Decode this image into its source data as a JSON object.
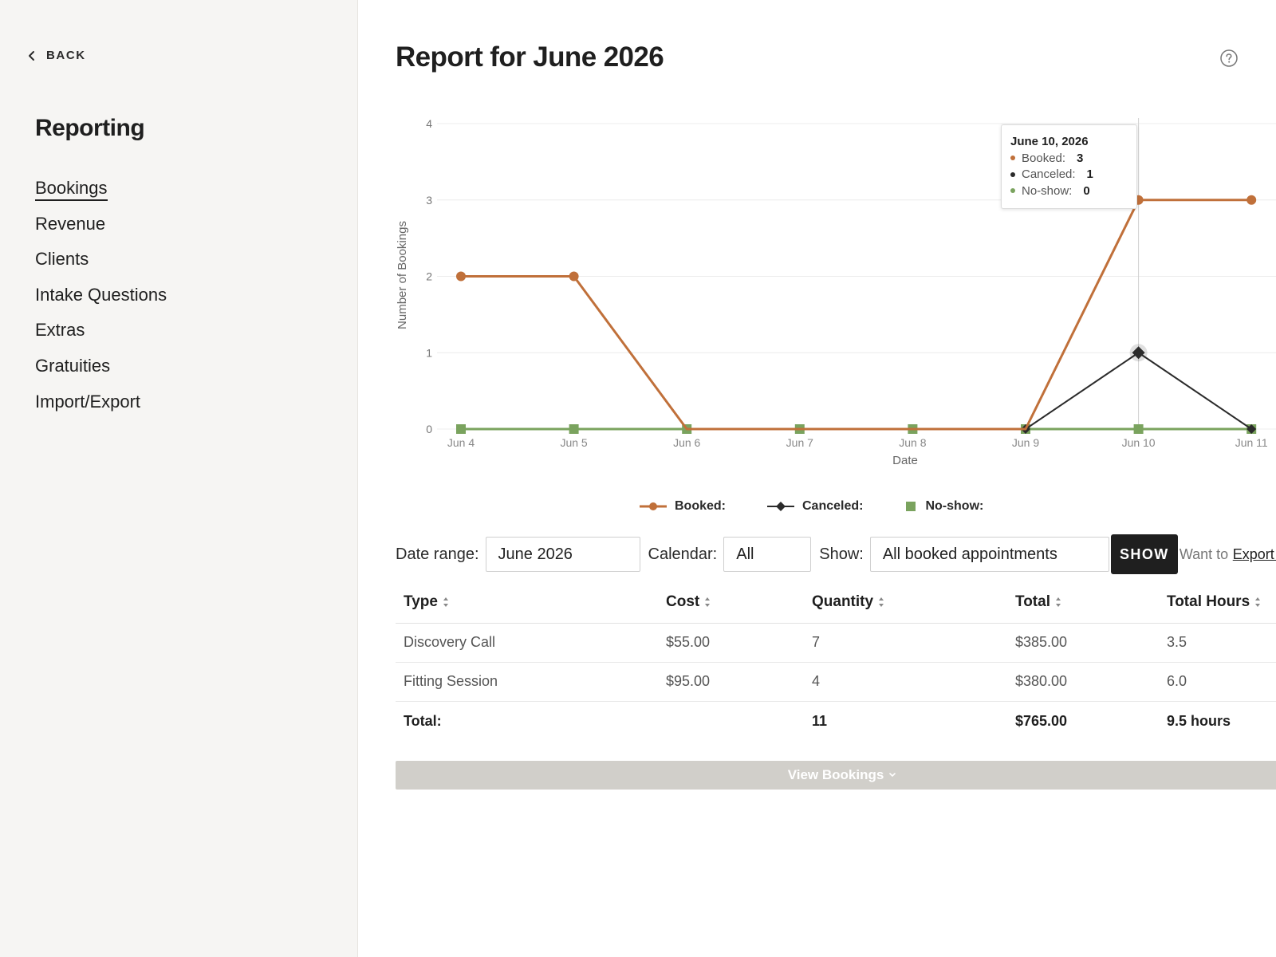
{
  "sidebar": {
    "back_label": "BACK",
    "title": "Reporting",
    "items": [
      {
        "label": "Bookings",
        "active": true
      },
      {
        "label": "Revenue"
      },
      {
        "label": "Clients"
      },
      {
        "label": "Intake Questions"
      },
      {
        "label": "Extras"
      },
      {
        "label": "Gratuities"
      },
      {
        "label": "Import/Export"
      }
    ]
  },
  "header": {
    "title": "Report for June 2026",
    "help_icon": "question-circle-icon"
  },
  "chart_data": {
    "type": "line",
    "xlabel": "Date",
    "ylabel": "Number of Bookings",
    "ylim": [
      0,
      4
    ],
    "y_ticks": [
      "0",
      "1",
      "2",
      "3",
      "4"
    ],
    "categories": [
      "Jun 4",
      "Jun 5",
      "Jun 6",
      "Jun 7",
      "Jun 8",
      "Jun 9",
      "Jun 10",
      "Jun 11"
    ],
    "series": [
      {
        "name": "Booked:",
        "color": "#c0703a",
        "marker": "circle",
        "values": [
          2,
          2,
          0,
          0,
          0,
          0,
          3,
          3
        ]
      },
      {
        "name": "Canceled:",
        "color": "#2b2b2b",
        "marker": "diamond",
        "values": [
          null,
          null,
          null,
          null,
          null,
          0,
          1,
          0
        ]
      },
      {
        "name": "No-show:",
        "color": "#7aa35e",
        "marker": "square",
        "values": [
          0,
          0,
          0,
          0,
          0,
          0,
          0,
          0
        ]
      }
    ],
    "grid": true,
    "legend_position": "bottom-center",
    "hover_index": 6
  },
  "tooltip": {
    "title": "June 10, 2026",
    "rows": [
      {
        "label": "Booked:",
        "value": "3",
        "color": "#c0703a"
      },
      {
        "label": "Canceled:",
        "value": "1",
        "color": "#2b2b2b"
      },
      {
        "label": "No-show:",
        "value": "0",
        "color": "#7aa35e"
      }
    ]
  },
  "legend": {
    "booked": "Booked:",
    "canceled": "Canceled:",
    "noshow": "No-show:"
  },
  "filters": {
    "date_range_label": "Date range:",
    "date_range_value": "June 2026",
    "calendar_label": "Calendar:",
    "calendar_value": "All",
    "show_label": "Show:",
    "show_value": "All booked appointments",
    "show_button": "SHOW",
    "export_prefix": "Want to",
    "export_link": "Export as"
  },
  "table": {
    "headers": [
      "Type",
      "Cost",
      "Quantity",
      "Total",
      "Total Hours"
    ],
    "rows": [
      [
        "Discovery Call",
        "$55.00",
        "7",
        "$385.00",
        "3.5"
      ],
      [
        "Fitting Session",
        "$95.00",
        "4",
        "$380.00",
        "6.0"
      ]
    ],
    "total_row": [
      "Total:",
      "",
      "11",
      "$765.00",
      "9.5 hours"
    ]
  },
  "view_bookings": "View Bookings"
}
